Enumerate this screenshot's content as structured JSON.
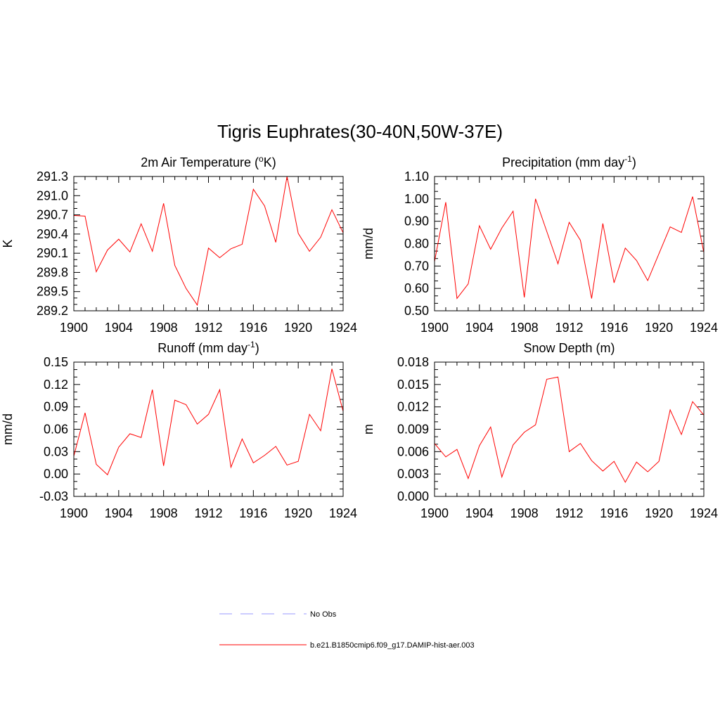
{
  "main_title": "Tigris Euphrates(30-40N,50W-37E)",
  "legend": [
    {
      "label": "No Obs",
      "color": "#9999ff",
      "dash": true
    },
    {
      "label": "b.e21.B1850cmip6.f09_g17.DAMIP-hist-aer.003",
      "color": "#ff0000",
      "dash": false
    }
  ],
  "chart_data": [
    {
      "type": "line",
      "title": "2m Air Temperature (",
      "title_sup": "o",
      "title_tail": "K)",
      "ylabel": "K",
      "xlim": [
        1900,
        1924
      ],
      "ylim": [
        289.2,
        291.3
      ],
      "xticks": [
        1900,
        1904,
        1908,
        1912,
        1916,
        1920,
        1924
      ],
      "yticks": [
        "289.2",
        "289.5",
        "289.8",
        "290.1",
        "290.4",
        "290.7",
        "291.0",
        "291.3"
      ],
      "series": [
        {
          "color": "#ff0000",
          "x": [
            1900,
            1901,
            1902,
            1903,
            1904,
            1905,
            1906,
            1907,
            1908,
            1909,
            1910,
            1911,
            1912,
            1913,
            1914,
            1915,
            1916,
            1917,
            1918,
            1919,
            1920,
            1921,
            1922,
            1923,
            1924
          ],
          "y": [
            290.69,
            290.68,
            289.81,
            290.15,
            290.32,
            290.12,
            290.56,
            290.13,
            290.88,
            289.91,
            289.55,
            289.29,
            290.18,
            290.03,
            290.17,
            290.24,
            291.1,
            290.84,
            290.27,
            291.3,
            290.41,
            290.13,
            290.35,
            290.78,
            290.42
          ]
        }
      ]
    },
    {
      "type": "line",
      "title": "Precipitation (mm day",
      "title_sup": "-1",
      "title_tail": ")",
      "ylabel": "mm/d",
      "xlim": [
        1900,
        1924
      ],
      "ylim": [
        0.5,
        1.1
      ],
      "xticks": [
        1900,
        1904,
        1908,
        1912,
        1916,
        1920,
        1924
      ],
      "yticks": [
        "0.50",
        "0.60",
        "0.70",
        "0.80",
        "0.90",
        "1.00",
        "1.10"
      ],
      "series": [
        {
          "color": "#ff0000",
          "x": [
            1900,
            1901,
            1902,
            1903,
            1904,
            1905,
            1906,
            1907,
            1908,
            1909,
            1910,
            1911,
            1912,
            1913,
            1914,
            1915,
            1916,
            1917,
            1918,
            1919,
            1920,
            1921,
            1922,
            1923,
            1924
          ],
          "y": [
            0.72,
            0.985,
            0.555,
            0.62,
            0.88,
            0.775,
            0.87,
            0.945,
            0.56,
            1.0,
            0.855,
            0.71,
            0.895,
            0.815,
            0.555,
            0.89,
            0.625,
            0.78,
            0.725,
            0.635,
            0.755,
            0.875,
            0.85,
            1.01,
            0.76
          ]
        }
      ]
    },
    {
      "type": "line",
      "title": "Runoff (mm day",
      "title_sup": "-1",
      "title_tail": ")",
      "ylabel": "mm/d",
      "xlim": [
        1900,
        1924
      ],
      "ylim": [
        -0.03,
        0.15
      ],
      "xticks": [
        1900,
        1904,
        1908,
        1912,
        1916,
        1920,
        1924
      ],
      "yticks": [
        "-0.03",
        "0.00",
        "0.03",
        "0.06",
        "0.09",
        "0.12",
        "0.15"
      ],
      "series": [
        {
          "color": "#ff0000",
          "x": [
            1900,
            1901,
            1902,
            1903,
            1904,
            1905,
            1906,
            1907,
            1908,
            1909,
            1910,
            1911,
            1912,
            1913,
            1914,
            1915,
            1916,
            1917,
            1918,
            1919,
            1920,
            1921,
            1922,
            1923,
            1924
          ],
          "y": [
            0.024,
            0.082,
            0.013,
            -0.001,
            0.036,
            0.054,
            0.049,
            0.113,
            0.011,
            0.099,
            0.093,
            0.067,
            0.08,
            0.113,
            0.009,
            0.047,
            0.015,
            0.025,
            0.037,
            0.012,
            0.017,
            0.08,
            0.058,
            0.141,
            0.084
          ]
        }
      ]
    },
    {
      "type": "line",
      "title": "Snow Depth (m)",
      "title_sup": "",
      "title_tail": "",
      "ylabel": "m",
      "xlim": [
        1900,
        1924
      ],
      "ylim": [
        0.0,
        0.018
      ],
      "xticks": [
        1900,
        1904,
        1908,
        1912,
        1916,
        1920,
        1924
      ],
      "yticks": [
        "0.000",
        "0.003",
        "0.006",
        "0.009",
        "0.012",
        "0.015",
        "0.018"
      ],
      "series": [
        {
          "color": "#ff0000",
          "x": [
            1900,
            1901,
            1902,
            1903,
            1904,
            1905,
            1906,
            1907,
            1908,
            1909,
            1910,
            1911,
            1912,
            1913,
            1914,
            1915,
            1916,
            1917,
            1918,
            1919,
            1920,
            1921,
            1922,
            1923,
            1924
          ],
          "y": [
            0.0071,
            0.0053,
            0.0063,
            0.0024,
            0.0068,
            0.0093,
            0.0026,
            0.0069,
            0.0086,
            0.0096,
            0.0157,
            0.016,
            0.006,
            0.0071,
            0.0048,
            0.0034,
            0.0047,
            0.0019,
            0.0046,
            0.0033,
            0.0047,
            0.0116,
            0.0083,
            0.0127,
            0.0109
          ]
        }
      ]
    }
  ]
}
